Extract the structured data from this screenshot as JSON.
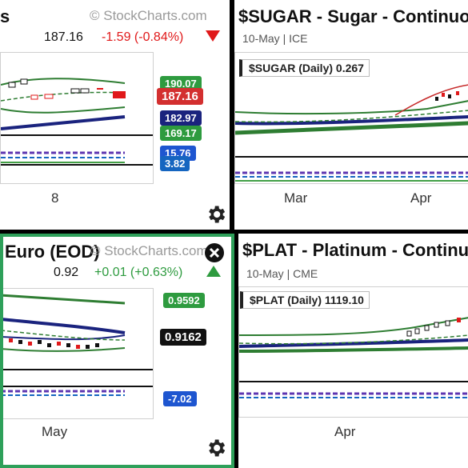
{
  "panels": {
    "top_left": {
      "title": "s",
      "watermark": "© StockCharts.com",
      "last": "187.16",
      "change": "-1.59 (-0.84%)",
      "x_labels": [
        "8"
      ],
      "tags": [
        "190.07",
        "187.16",
        "182.97",
        "169.17",
        "15.76",
        "3.82"
      ]
    },
    "top_right": {
      "title": "$SUGAR - Sugar - Continuo",
      "subtitle": "10-May | ICE",
      "label": "$SUGAR (Daily) 0.267",
      "x_labels": [
        "Mar",
        "Apr"
      ]
    },
    "bottom_left": {
      "title": "Euro (EOD)",
      "watermark": "© StockCharts.com",
      "last": "0.92",
      "change": "+0.01 (+0.63%)",
      "x_labels": [
        "May"
      ],
      "tags": [
        "0.9592",
        "0.9162",
        "-7.02"
      ]
    },
    "bottom_right": {
      "title": "$PLAT - Platinum - Continuo",
      "subtitle": "10-May | CME",
      "label": "$PLAT (Daily) 1119.10",
      "x_labels": [
        "Apr"
      ]
    }
  },
  "colors": {
    "up": "#2e9b3f",
    "down": "#e0191a",
    "accent": "#2ea05a"
  },
  "icons": [
    "gear-icon",
    "close-icon",
    "triangle-down-icon",
    "triangle-up-icon"
  ]
}
